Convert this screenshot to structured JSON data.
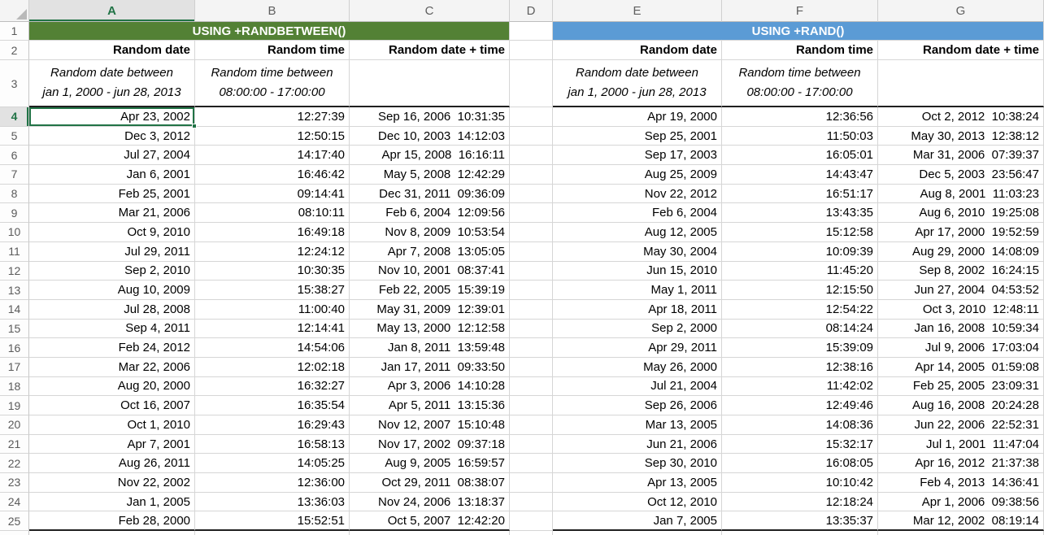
{
  "columns": [
    "A",
    "B",
    "C",
    "D",
    "E",
    "F",
    "G"
  ],
  "selection": {
    "active_cell": "A4",
    "accent_color": "#217346"
  },
  "sections": {
    "randbetween": {
      "title": "USING +RANDBETWEEN()",
      "color": "#538135"
    },
    "rand": {
      "title": "USING +RAND()",
      "color": "#5b9bd5"
    }
  },
  "row1": {
    "n": "1"
  },
  "row2": {
    "n": "2",
    "left": {
      "date": "Random date",
      "time": "Random time",
      "datetime": "Random date + time"
    },
    "right": {
      "date": "Random date",
      "time": "Random time",
      "datetime": "Random date + time"
    }
  },
  "row3": {
    "n": "3",
    "left": {
      "date_note": "Random date between\njan 1, 2000 - jun 28, 2013",
      "time_note": "Random time between\n08:00:00 - 17:00:00"
    },
    "right": {
      "date_note": "Random date between\njan 1, 2000 - jun 28, 2013",
      "time_note": "Random time between\n08:00:00 - 17:00:00"
    }
  },
  "rows": [
    {
      "n": "4",
      "a": "Apr 23, 2002",
      "b": "12:27:39",
      "c": "Sep 16, 2006  10:31:35",
      "e": "Apr 19, 2000",
      "f": "12:36:56",
      "g": "Oct 2, 2012  10:38:24"
    },
    {
      "n": "5",
      "a": "Dec 3, 2012",
      "b": "12:50:15",
      "c": "Dec 10, 2003  14:12:03",
      "e": "Sep 25, 2001",
      "f": "11:50:03",
      "g": "May 30, 2013  12:38:12"
    },
    {
      "n": "6",
      "a": "Jul 27, 2004",
      "b": "14:17:40",
      "c": "Apr 15, 2008  16:16:11",
      "e": "Sep 17, 2003",
      "f": "16:05:01",
      "g": "Mar 31, 2006  07:39:37"
    },
    {
      "n": "7",
      "a": "Jan 6, 2001",
      "b": "16:46:42",
      "c": "May 5, 2008  12:42:29",
      "e": "Aug 25, 2009",
      "f": "14:43:47",
      "g": "Dec 5, 2003  23:56:47"
    },
    {
      "n": "8",
      "a": "Feb 25, 2001",
      "b": "09:14:41",
      "c": "Dec 31, 2011  09:36:09",
      "e": "Nov 22, 2012",
      "f": "16:51:17",
      "g": "Aug 8, 2001  11:03:23"
    },
    {
      "n": "9",
      "a": "Mar 21, 2006",
      "b": "08:10:11",
      "c": "Feb 6, 2004  12:09:56",
      "e": "Feb 6, 2004",
      "f": "13:43:35",
      "g": "Aug 6, 2010  19:25:08"
    },
    {
      "n": "10",
      "a": "Oct 9, 2010",
      "b": "16:49:18",
      "c": "Nov 8, 2009  10:53:54",
      "e": "Aug 12, 2005",
      "f": "15:12:58",
      "g": "Apr 17, 2000  19:52:59"
    },
    {
      "n": "11",
      "a": "Jul 29, 2011",
      "b": "12:24:12",
      "c": "Apr 7, 2008  13:05:05",
      "e": "May 30, 2004",
      "f": "10:09:39",
      "g": "Aug 29, 2000  14:08:09"
    },
    {
      "n": "12",
      "a": "Sep 2, 2010",
      "b": "10:30:35",
      "c": "Nov 10, 2001  08:37:41",
      "e": "Jun 15, 2010",
      "f": "11:45:20",
      "g": "Sep 8, 2002  16:24:15"
    },
    {
      "n": "13",
      "a": "Aug 10, 2009",
      "b": "15:38:27",
      "c": "Feb 22, 2005  15:39:19",
      "e": "May 1, 2011",
      "f": "12:15:50",
      "g": "Jun 27, 2004  04:53:52"
    },
    {
      "n": "14",
      "a": "Jul 28, 2008",
      "b": "11:00:40",
      "c": "May 31, 2009  12:39:01",
      "e": "Apr 18, 2011",
      "f": "12:54:22",
      "g": "Oct 3, 2010  12:48:11"
    },
    {
      "n": "15",
      "a": "Sep 4, 2011",
      "b": "12:14:41",
      "c": "May 13, 2000  12:12:58",
      "e": "Sep 2, 2000",
      "f": "08:14:24",
      "g": "Jan 16, 2008  10:59:34"
    },
    {
      "n": "16",
      "a": "Feb 24, 2012",
      "b": "14:54:06",
      "c": "Jan 8, 2011  13:59:48",
      "e": "Apr 29, 2011",
      "f": "15:39:09",
      "g": "Jul 9, 2006  17:03:04"
    },
    {
      "n": "17",
      "a": "Mar 22, 2006",
      "b": "12:02:18",
      "c": "Jan 17, 2011  09:33:50",
      "e": "May 26, 2000",
      "f": "12:38:16",
      "g": "Apr 14, 2005  01:59:08"
    },
    {
      "n": "18",
      "a": "Aug 20, 2000",
      "b": "16:32:27",
      "c": "Apr 3, 2006  14:10:28",
      "e": "Jul 21, 2004",
      "f": "11:42:02",
      "g": "Feb 25, 2005  23:09:31"
    },
    {
      "n": "19",
      "a": "Oct 16, 2007",
      "b": "16:35:54",
      "c": "Apr 5, 2011  13:15:36",
      "e": "Sep 26, 2006",
      "f": "12:49:46",
      "g": "Aug 16, 2008  20:24:28"
    },
    {
      "n": "20",
      "a": "Oct 1, 2010",
      "b": "16:29:43",
      "c": "Nov 12, 2007  15:10:48",
      "e": "Mar 13, 2005",
      "f": "14:08:36",
      "g": "Jun 22, 2006  22:52:31"
    },
    {
      "n": "21",
      "a": "Apr 7, 2001",
      "b": "16:58:13",
      "c": "Nov 17, 2002  09:37:18",
      "e": "Jun 21, 2006",
      "f": "15:32:17",
      "g": "Jul 1, 2001  11:47:04"
    },
    {
      "n": "22",
      "a": "Aug 26, 2011",
      "b": "14:05:25",
      "c": "Aug 9, 2005  16:59:57",
      "e": "Sep 30, 2010",
      "f": "16:08:05",
      "g": "Apr 16, 2012  21:37:38"
    },
    {
      "n": "23",
      "a": "Nov 22, 2002",
      "b": "12:36:00",
      "c": "Oct 29, 2011  08:38:07",
      "e": "Apr 13, 2005",
      "f": "10:10:42",
      "g": "Feb 4, 2013  14:36:41"
    },
    {
      "n": "24",
      "a": "Jan 1, 2005",
      "b": "13:36:03",
      "c": "Nov 24, 2006  13:18:37",
      "e": "Oct 12, 2010",
      "f": "12:18:24",
      "g": "Apr 1, 2006  09:38:56"
    },
    {
      "n": "25",
      "a": "Feb 28, 2000",
      "b": "15:52:51",
      "c": "Oct 5, 2007  12:42:20",
      "e": "Jan 7, 2005",
      "f": "13:35:37",
      "g": "Mar 12, 2002  08:19:14"
    }
  ]
}
